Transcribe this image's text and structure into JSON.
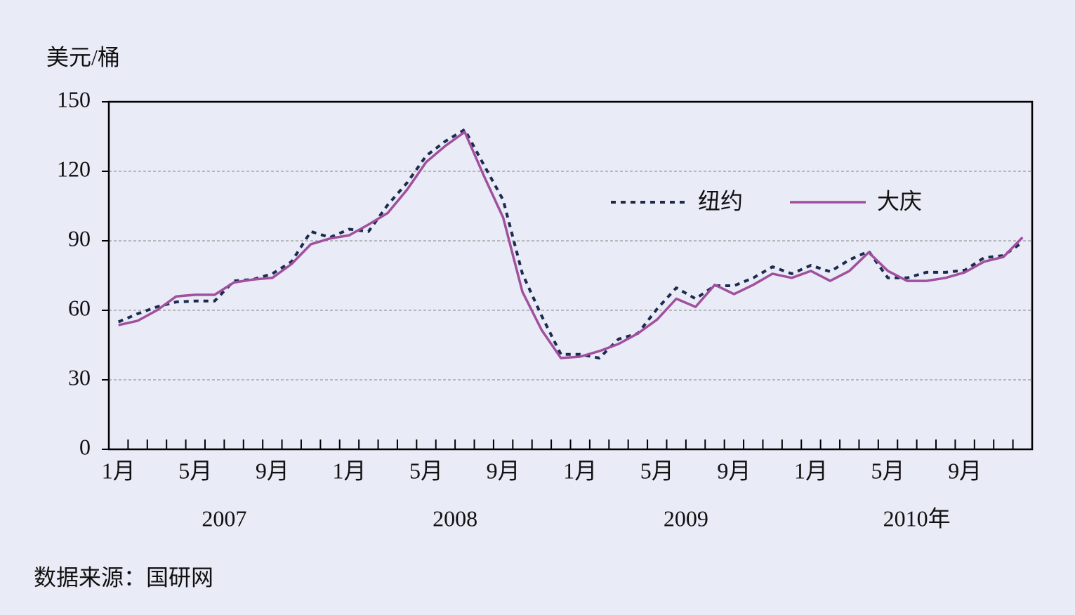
{
  "chart_data": {
    "type": "line",
    "y_axis_label": "美元/桶",
    "categories": [
      "1月",
      null,
      null,
      null,
      "5月",
      null,
      null,
      null,
      "9月",
      null,
      null,
      null,
      "1月",
      null,
      null,
      null,
      "5月",
      null,
      null,
      null,
      "9月",
      null,
      null,
      null,
      "1月",
      null,
      null,
      null,
      "5月",
      null,
      null,
      null,
      "9月",
      null,
      null,
      null,
      "1月",
      null,
      null,
      null,
      "5月",
      null,
      null,
      null,
      "9月",
      null,
      null,
      null
    ],
    "year_labels": [
      "2007",
      "2008",
      "2009",
      "2010年"
    ],
    "series": [
      {
        "name": "纽约",
        "color": "#1c2a4d",
        "dash": "dotted",
        "values": [
          55,
          58.5,
          61.5,
          63.6,
          64,
          64,
          72.7,
          73.3,
          75.8,
          81,
          94,
          91.5,
          95,
          94,
          105.5,
          115,
          126.7,
          133,
          138,
          122.7,
          107.6,
          75.8,
          57.6,
          41,
          41,
          39.4,
          47.6,
          50,
          60.6,
          69.7,
          65,
          70.6,
          70.6,
          74,
          78.8,
          75.8,
          79.4,
          76.7,
          81.8,
          85.5,
          74,
          74,
          76.4,
          76.4,
          77.3,
          82.7,
          83.6,
          89.4
        ]
      },
      {
        "name": "大庆",
        "color": "#a0509e",
        "dash": "solid",
        "values": [
          53.6,
          55.5,
          60,
          66,
          66.7,
          66.7,
          72,
          73.3,
          74,
          80,
          88.5,
          91,
          92.4,
          97,
          102,
          112,
          124,
          131,
          137,
          118,
          100,
          68,
          51.5,
          39.4,
          40,
          42.4,
          45.5,
          50,
          56,
          65,
          61.5,
          71,
          67,
          71,
          75.8,
          74,
          77,
          72.7,
          77,
          85,
          77,
          72.7,
          72.7,
          74,
          76.4,
          81,
          83,
          91.5
        ]
      }
    ],
    "ylim": [
      0,
      150
    ],
    "yticks": [
      0,
      30,
      60,
      90,
      120,
      150
    ],
    "grid": true,
    "source": "数据来源：国研网"
  }
}
